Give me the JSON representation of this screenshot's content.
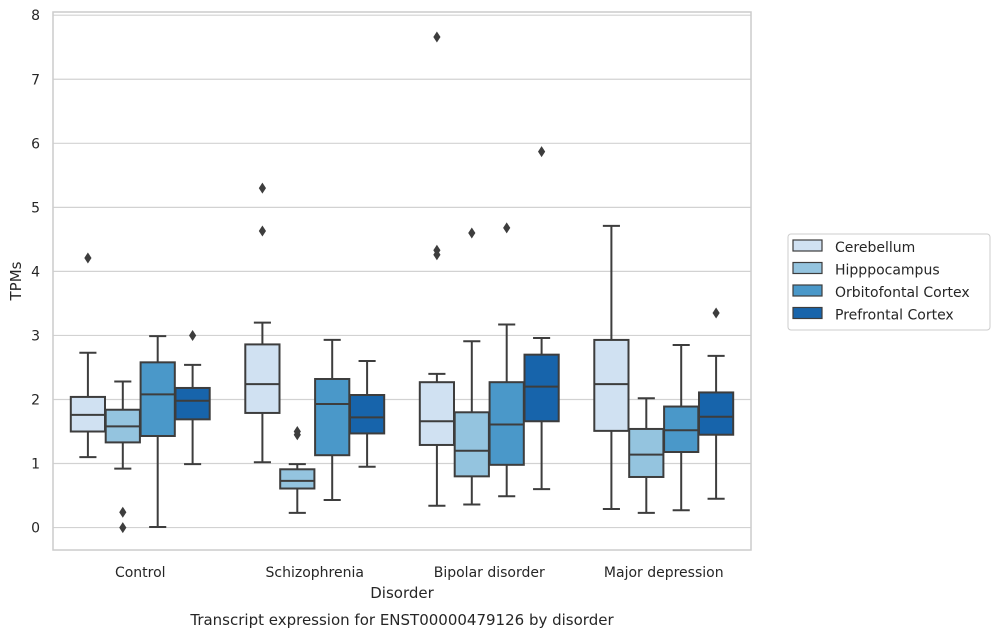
{
  "chart_data": {
    "type": "boxplot",
    "caption": "Transcript expression for ENST00000479126 by disorder",
    "xlabel": "Disorder",
    "ylabel": "TPMs",
    "ylim": [
      -0.35,
      8.05
    ],
    "yticks": [
      0,
      1,
      2,
      3,
      4,
      5,
      6,
      7,
      8
    ],
    "grid": "horizontal",
    "legend_position": "right",
    "categories": [
      "Control",
      "Schizophrenia",
      "Bipolar disorder",
      "Major depression"
    ],
    "series": [
      {
        "name": "Cerebellum",
        "color": "#d0e1f2",
        "boxes": [
          {
            "whislo": 1.1,
            "q1": 1.5,
            "med": 1.76,
            "q3": 2.04,
            "whishi": 2.73,
            "fliers": [
              4.21
            ]
          },
          {
            "whislo": 1.02,
            "q1": 1.79,
            "med": 2.24,
            "q3": 2.86,
            "whishi": 3.2,
            "fliers": [
              4.63,
              5.3
            ]
          },
          {
            "whislo": 0.34,
            "q1": 1.29,
            "med": 1.66,
            "q3": 2.27,
            "whishi": 2.4,
            "fliers": [
              4.26,
              4.33,
              7.66
            ]
          },
          {
            "whislo": 0.29,
            "q1": 1.51,
            "med": 2.24,
            "q3": 2.93,
            "whishi": 4.71,
            "fliers": []
          }
        ]
      },
      {
        "name": "Hipppocampus",
        "color": "#94c4df",
        "boxes": [
          {
            "whislo": 0.92,
            "q1": 1.33,
            "med": 1.58,
            "q3": 1.84,
            "whishi": 2.28,
            "fliers": [
              0.0,
              0.24
            ]
          },
          {
            "whislo": 0.23,
            "q1": 0.61,
            "med": 0.73,
            "q3": 0.91,
            "whishi": 0.99,
            "fliers": [
              1.45,
              1.5
            ]
          },
          {
            "whislo": 0.36,
            "q1": 0.8,
            "med": 1.2,
            "q3": 1.8,
            "whishi": 2.91,
            "fliers": [
              4.6
            ]
          },
          {
            "whislo": 0.23,
            "q1": 0.79,
            "med": 1.14,
            "q3": 1.54,
            "whishi": 2.02,
            "fliers": []
          }
        ]
      },
      {
        "name": "Orbitofontal Cortex",
        "color": "#4a98c9",
        "boxes": [
          {
            "whislo": 0.01,
            "q1": 1.43,
            "med": 2.08,
            "q3": 2.58,
            "whishi": 2.99,
            "fliers": []
          },
          {
            "whislo": 0.43,
            "q1": 1.13,
            "med": 1.93,
            "q3": 2.32,
            "whishi": 2.93,
            "fliers": []
          },
          {
            "whislo": 0.49,
            "q1": 0.98,
            "med": 1.61,
            "q3": 2.27,
            "whishi": 3.17,
            "fliers": [
              4.68
            ]
          },
          {
            "whislo": 0.27,
            "q1": 1.18,
            "med": 1.52,
            "q3": 1.89,
            "whishi": 2.85,
            "fliers": []
          }
        ]
      },
      {
        "name": "Prefrontal Cortex",
        "color": "#1764ab",
        "boxes": [
          {
            "whislo": 0.99,
            "q1": 1.69,
            "med": 1.98,
            "q3": 2.18,
            "whishi": 2.54,
            "fliers": [
              3.0
            ]
          },
          {
            "whislo": 0.95,
            "q1": 1.47,
            "med": 1.72,
            "q3": 2.07,
            "whishi": 2.6,
            "fliers": []
          },
          {
            "whislo": 0.6,
            "q1": 1.66,
            "med": 2.2,
            "q3": 2.7,
            "whishi": 2.96,
            "fliers": [
              5.87
            ]
          },
          {
            "whislo": 0.45,
            "q1": 1.45,
            "med": 1.73,
            "q3": 2.11,
            "whishi": 2.68,
            "fliers": [
              3.35
            ]
          }
        ]
      }
    ]
  }
}
